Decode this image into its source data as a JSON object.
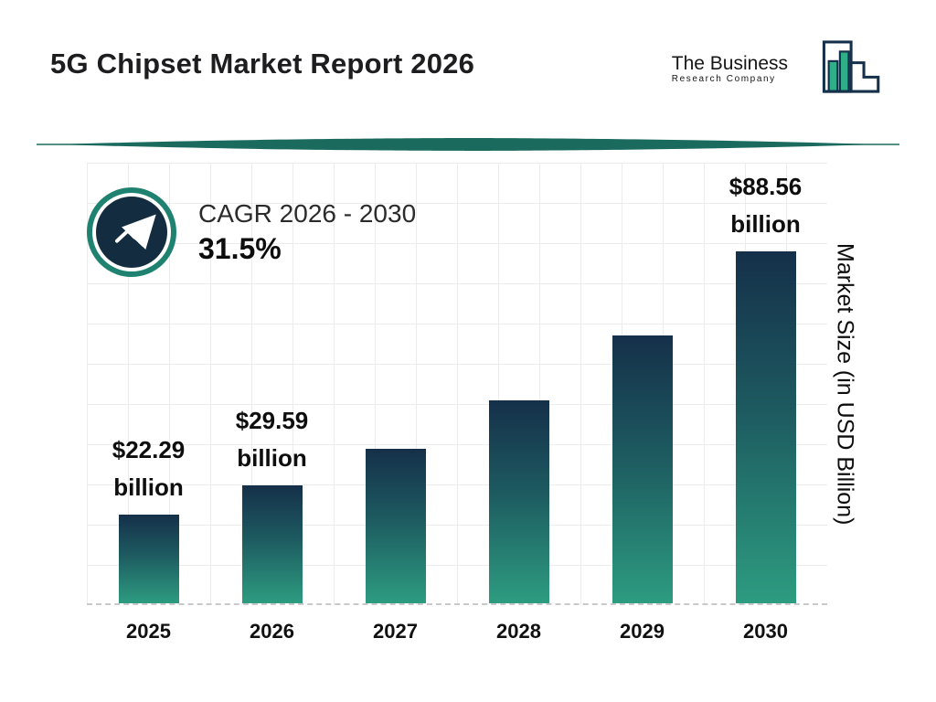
{
  "header": {
    "title": "5G Chipset Market Report 2026",
    "logo": {
      "line1": "The Business",
      "line2": "Research Company"
    }
  },
  "cagr": {
    "label": "CAGR 2026 - 2030",
    "value": "31.5%"
  },
  "chart_data": {
    "type": "bar",
    "categories": [
      "2025",
      "2026",
      "2027",
      "2028",
      "2029",
      "2030"
    ],
    "values": [
      22.29,
      29.59,
      38.91,
      51.17,
      67.29,
      88.56
    ],
    "value_labels": [
      "$22.29 billion",
      "$29.59 billion",
      "",
      "",
      "",
      "$88.56 billion"
    ],
    "title": "5G Chipset Market Report 2026",
    "xlabel": "",
    "ylabel": "Market Size (in USD Billion)",
    "ylim": [
      0,
      100
    ],
    "grid": true,
    "legend": false,
    "colors": {
      "bar_top": "#15304a",
      "bar_bottom": "#2d9c80",
      "accent_teal": "#1f8270",
      "badge_navy": "#132c3f",
      "divider_teal": "#1b6a5e"
    }
  }
}
